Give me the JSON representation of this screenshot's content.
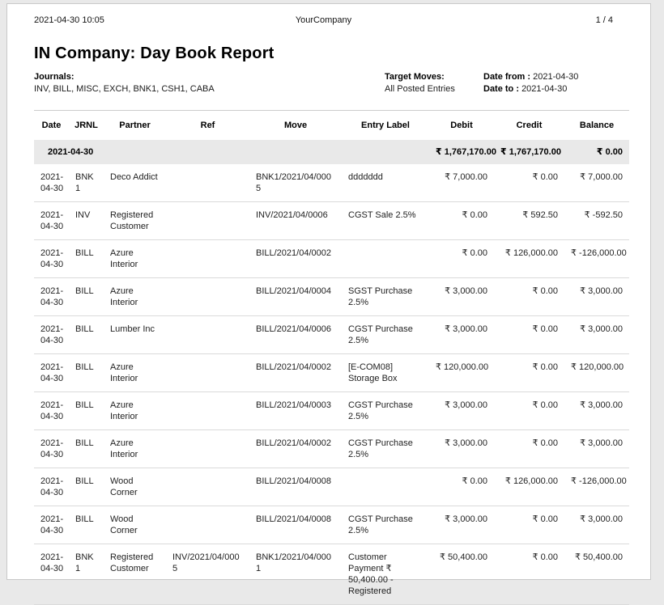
{
  "meta": {
    "generated_at": "2021-04-30 10:05",
    "company_name": "YourCompany",
    "page_counter": "1  /  4"
  },
  "title": "IN Company: Day Book Report",
  "filters": {
    "journals_label": "Journals:",
    "journals_value": "INV, BILL, MISC, EXCH, BNK1, CSH1, CABA",
    "target_moves_label": "Target Moves:",
    "target_moves_value": "All Posted Entries",
    "date_from_label": "Date from :",
    "date_from_value": "2021-04-30",
    "date_to_label": "Date to :",
    "date_to_value": "2021-04-30"
  },
  "table": {
    "columns": [
      {
        "key": "date",
        "label": "Date"
      },
      {
        "key": "jrnl",
        "label": "JRNL"
      },
      {
        "key": "partner",
        "label": "Partner"
      },
      {
        "key": "ref",
        "label": "Ref"
      },
      {
        "key": "move",
        "label": "Move"
      },
      {
        "key": "label",
        "label": "Entry Label"
      },
      {
        "key": "debit",
        "label": "Debit"
      },
      {
        "key": "credit",
        "label": "Credit"
      },
      {
        "key": "balance",
        "label": "Balance"
      }
    ],
    "summary": {
      "date": "2021-04-30",
      "debit": "₹ 1,767,170.00",
      "credit": "₹ 1,767,170.00",
      "balance": "₹ 0.00"
    },
    "rows": [
      {
        "date": "2021-04-30",
        "jrnl": "BNK1",
        "partner": "Deco Addict",
        "ref": "",
        "move": "BNK1/2021/04/0005",
        "label": "ddddddd",
        "debit": "₹ 7,000.00",
        "credit": "₹ 0.00",
        "balance": "₹ 7,000.00"
      },
      {
        "date": "2021-04-30",
        "jrnl": "INV",
        "partner": "Registered Customer",
        "ref": "",
        "move": "INV/2021/04/0006",
        "label": "CGST Sale 2.5%",
        "debit": "₹ 0.00",
        "credit": "₹ 592.50",
        "balance": "₹ -592.50"
      },
      {
        "date": "2021-04-30",
        "jrnl": "BILL",
        "partner": "Azure Interior",
        "ref": "",
        "move": "BILL/2021/04/0002",
        "label": "",
        "debit": "₹ 0.00",
        "credit": "₹ 126,000.00",
        "balance": "₹ -126,000.00"
      },
      {
        "date": "2021-04-30",
        "jrnl": "BILL",
        "partner": "Azure Interior",
        "ref": "",
        "move": "BILL/2021/04/0004",
        "label": "SGST Purchase 2.5%",
        "debit": "₹ 3,000.00",
        "credit": "₹ 0.00",
        "balance": "₹ 3,000.00"
      },
      {
        "date": "2021-04-30",
        "jrnl": "BILL",
        "partner": "Lumber Inc",
        "ref": "",
        "move": "BILL/2021/04/0006",
        "label": "CGST Purchase 2.5%",
        "debit": "₹ 3,000.00",
        "credit": "₹ 0.00",
        "balance": "₹ 3,000.00"
      },
      {
        "date": "2021-04-30",
        "jrnl": "BILL",
        "partner": "Azure Interior",
        "ref": "",
        "move": "BILL/2021/04/0002",
        "label": "[E-COM08] Storage Box",
        "debit": "₹ 120,000.00",
        "credit": "₹ 0.00",
        "balance": "₹ 120,000.00"
      },
      {
        "date": "2021-04-30",
        "jrnl": "BILL",
        "partner": "Azure Interior",
        "ref": "",
        "move": "BILL/2021/04/0003",
        "label": "CGST Purchase 2.5%",
        "debit": "₹ 3,000.00",
        "credit": "₹ 0.00",
        "balance": "₹ 3,000.00"
      },
      {
        "date": "2021-04-30",
        "jrnl": "BILL",
        "partner": "Azure Interior",
        "ref": "",
        "move": "BILL/2021/04/0002",
        "label": "CGST Purchase 2.5%",
        "debit": "₹ 3,000.00",
        "credit": "₹ 0.00",
        "balance": "₹ 3,000.00"
      },
      {
        "date": "2021-04-30",
        "jrnl": "BILL",
        "partner": "Wood Corner",
        "ref": "",
        "move": "BILL/2021/04/0008",
        "label": "",
        "debit": "₹ 0.00",
        "credit": "₹ 126,000.00",
        "balance": "₹ -126,000.00"
      },
      {
        "date": "2021-04-30",
        "jrnl": "BILL",
        "partner": "Wood Corner",
        "ref": "",
        "move": "BILL/2021/04/0008",
        "label": "CGST Purchase 2.5%",
        "debit": "₹ 3,000.00",
        "credit": "₹ 0.00",
        "balance": "₹ 3,000.00"
      },
      {
        "date": "2021-04-30",
        "jrnl": "BNK1",
        "partner": "Registered Customer",
        "ref": "INV/2021/04/0005",
        "move": "BNK1/2021/04/0001",
        "label": "Customer Payment ₹ 50,400.00 - Registered",
        "debit": "₹ 50,400.00",
        "credit": "₹ 0.00",
        "balance": "₹ 50,400.00"
      }
    ]
  }
}
